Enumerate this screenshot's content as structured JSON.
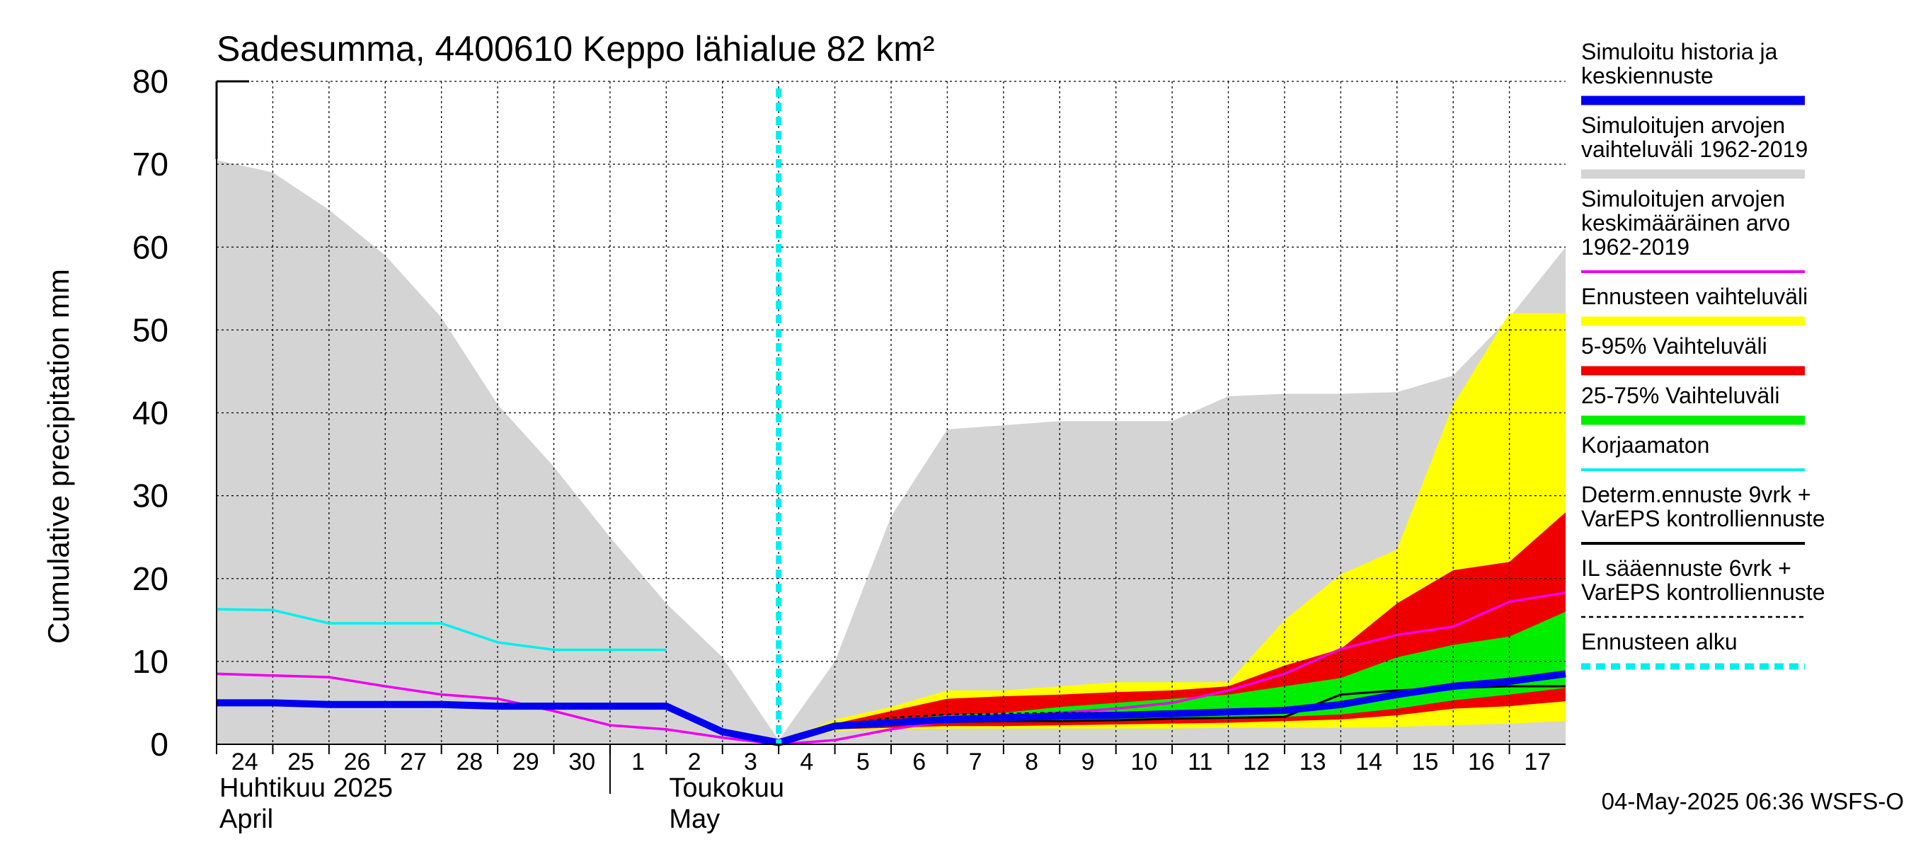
{
  "chart_data": {
    "type": "area",
    "title": "Sadesumma, 4400610 Keppo lähialue 82 km²",
    "ylabel": "Cumulative precipitation   mm",
    "ylim": [
      0,
      80
    ],
    "yticks": [
      "0",
      "10",
      "20",
      "30",
      "40",
      "50",
      "60",
      "70",
      "80"
    ],
    "xlim": [
      "2025-04-24",
      "2025-05-18"
    ],
    "x_tick_labels": [
      "24",
      "25",
      "26",
      "27",
      "28",
      "29",
      "30",
      "1",
      "2",
      "3",
      "4",
      "5",
      "6",
      "7",
      "8",
      "9",
      "10",
      "11",
      "12",
      "13",
      "14",
      "15",
      "16",
      "17"
    ],
    "month_labels": [
      {
        "line1": "Huhtikuu  2025",
        "line2": "April"
      },
      {
        "line1": "Toukokuu",
        "line2": "May"
      }
    ],
    "forecast_start": "2025-05-04",
    "grid": true,
    "legend_position": "right",
    "footer": "04-May-2025 06:36 WSFS-O",
    "legend": [
      {
        "label": "Simuloitu historia ja\nkeskiennuste",
        "color": "#0000ee",
        "style": "thick"
      },
      {
        "label": "Simuloitujen arvojen\nvaihteluväli 1962-2019",
        "color": "#d4d4d4",
        "style": "thick"
      },
      {
        "label": "Simuloitujen arvojen\nkeskimääräinen arvo\n   1962-2019",
        "color": "#ee00ee",
        "style": "line"
      },
      {
        "label": "Ennusteen vaihteluväli",
        "color": "#ffff00",
        "style": "thick"
      },
      {
        "label": "5-95% Vaihteluväli",
        "color": "#ee0000",
        "style": "thick"
      },
      {
        "label": "25-75% Vaihteluväli",
        "color": "#00ee00",
        "style": "thick"
      },
      {
        "label": "Korjaamaton",
        "color": "#00eeee",
        "style": "line"
      },
      {
        "label": "Determ.ennuste 9vrk +\nVarEPS kontrolliennuste",
        "color": "#000000",
        "style": "line"
      },
      {
        "label": "IL sääennuste 6vrk  +\n  VarEPS kontrolliennuste",
        "color": "#000000",
        "style": "dashed"
      },
      {
        "label": "Ennusteen alku",
        "color": "#00eeee",
        "style": "thickdashed"
      }
    ],
    "series": [
      {
        "name": "Simuloitujen arvojen vaihteluväli 1962-2019",
        "type": "band",
        "x": [
          "2025-04-24",
          "2025-04-25",
          "2025-04-26",
          "2025-04-27",
          "2025-04-28",
          "2025-04-29",
          "2025-04-30",
          "2025-05-01",
          "2025-05-02",
          "2025-05-03",
          "2025-05-04",
          "2025-05-05",
          "2025-05-06",
          "2025-05-07",
          "2025-05-08",
          "2025-05-09",
          "2025-05-10",
          "2025-05-11",
          "2025-05-12",
          "2025-05-13",
          "2025-05-14",
          "2025-05-15",
          "2025-05-16",
          "2025-05-17",
          "2025-05-18"
        ],
        "upper": [
          70.5,
          69,
          64.5,
          59,
          51.5,
          41,
          33.5,
          25,
          17,
          10.5,
          0.5,
          10,
          27.5,
          38,
          38.5,
          39,
          39,
          39,
          42,
          42.3,
          42.3,
          42.5,
          44.5,
          51.5,
          60
        ],
        "lower": [
          0,
          0,
          0,
          0,
          0,
          0,
          0,
          0,
          0,
          0,
          0,
          0,
          0,
          0,
          0,
          0,
          0,
          0,
          0,
          0,
          0,
          0,
          0,
          0,
          0
        ]
      },
      {
        "name": "Ennusteen vaihteluväli",
        "type": "band",
        "x": [
          "2025-05-04",
          "2025-05-05",
          "2025-05-06",
          "2025-05-07",
          "2025-05-08",
          "2025-05-09",
          "2025-05-10",
          "2025-05-11",
          "2025-05-12",
          "2025-05-13",
          "2025-05-14",
          "2025-05-15",
          "2025-05-16",
          "2025-05-17",
          "2025-05-18"
        ],
        "upper": [
          0.3,
          3,
          4.5,
          6.5,
          6.5,
          7,
          7.5,
          7.5,
          7.5,
          15,
          20.5,
          23.5,
          41,
          52,
          52
        ],
        "lower": [
          0.2,
          1.6,
          1.8,
          1.9,
          1.9,
          1.9,
          1.9,
          1.9,
          2,
          2,
          2,
          2.1,
          2.3,
          2.5,
          2.8
        ]
      },
      {
        "name": "5-95% Vaihteluväli",
        "type": "band",
        "x": [
          "2025-05-04",
          "2025-05-05",
          "2025-05-06",
          "2025-05-07",
          "2025-05-08",
          "2025-05-09",
          "2025-05-10",
          "2025-05-11",
          "2025-05-12",
          "2025-05-13",
          "2025-05-14",
          "2025-05-15",
          "2025-05-16",
          "2025-05-17",
          "2025-05-18"
        ],
        "upper": [
          0.3,
          2.5,
          4,
          5.5,
          5.8,
          6,
          6.3,
          6.5,
          7,
          9.5,
          11.5,
          17,
          21,
          22,
          28
        ],
        "lower": [
          0.2,
          1.8,
          2,
          2.2,
          2.2,
          2.3,
          2.4,
          2.5,
          2.6,
          2.8,
          3,
          3.5,
          4.3,
          4.6,
          5.2
        ]
      },
      {
        "name": "25-75% Vaihteluväli",
        "type": "band",
        "x": [
          "2025-05-04",
          "2025-05-05",
          "2025-05-06",
          "2025-05-07",
          "2025-05-08",
          "2025-05-09",
          "2025-05-10",
          "2025-05-11",
          "2025-05-12",
          "2025-05-13",
          "2025-05-14",
          "2025-05-15",
          "2025-05-16",
          "2025-05-17",
          "2025-05-18"
        ],
        "upper": [
          0.3,
          2.2,
          3,
          3.5,
          3.8,
          4.5,
          5,
          5.5,
          6,
          7,
          8,
          10.5,
          12,
          13,
          16
        ],
        "lower": [
          0.2,
          2,
          2.4,
          2.6,
          2.7,
          2.8,
          2.9,
          3,
          3.1,
          3.3,
          3.6,
          4.3,
          5.3,
          6,
          6.8
        ]
      },
      {
        "name": "Simuloitujen arvojen keskimääräinen arvo 1962-2019",
        "type": "line",
        "x": [
          "2025-04-24",
          "2025-04-25",
          "2025-04-26",
          "2025-04-27",
          "2025-04-28",
          "2025-04-29",
          "2025-04-30",
          "2025-05-01",
          "2025-05-02",
          "2025-05-03",
          "2025-05-04",
          "2025-05-05",
          "2025-05-06",
          "2025-05-07",
          "2025-05-08",
          "2025-05-09",
          "2025-05-10",
          "2025-05-11",
          "2025-05-12",
          "2025-05-13",
          "2025-05-14",
          "2025-05-15",
          "2025-05-16",
          "2025-05-17",
          "2025-05-18"
        ],
        "y": [
          8.5,
          8.3,
          8.1,
          7,
          6,
          5.5,
          4,
          2.3,
          1.8,
          0.8,
          0,
          0.5,
          1.8,
          2.8,
          3.3,
          3.8,
          4.3,
          5,
          6.5,
          8.5,
          11.5,
          13.2,
          14.2,
          17.2,
          18.3
        ]
      },
      {
        "name": "Korjaamaton",
        "type": "line",
        "x": [
          "2025-04-24",
          "2025-04-25",
          "2025-04-26",
          "2025-04-27",
          "2025-04-28",
          "2025-04-29",
          "2025-04-30",
          "2025-05-01",
          "2025-05-02"
        ],
        "y": [
          16.3,
          16.2,
          14.6,
          14.6,
          14.6,
          12.3,
          11.4,
          11.4,
          11.4
        ]
      },
      {
        "name": "Determ.ennuste 9vrk + VarEPS kontrolliennuste",
        "type": "line",
        "x": [
          "2025-05-04",
          "2025-05-05",
          "2025-05-06",
          "2025-05-07",
          "2025-05-08",
          "2025-05-09",
          "2025-05-10",
          "2025-05-11",
          "2025-05-12",
          "2025-05-13",
          "2025-05-14",
          "2025-05-15",
          "2025-05-16",
          "2025-05-17",
          "2025-05-18"
        ],
        "y": [
          0.2,
          2,
          2.5,
          2.7,
          2.8,
          2.8,
          2.9,
          3.1,
          3.2,
          3.3,
          6,
          6.5,
          6.8,
          7,
          7
        ]
      },
      {
        "name": "IL sääennuste 6vrk + VarEPS kontrolliennuste",
        "type": "dashed",
        "x": [
          "2025-05-04",
          "2025-05-05",
          "2025-05-06",
          "2025-05-07",
          "2025-05-08",
          "2025-05-09",
          "2025-05-10"
        ],
        "y": [
          0.2,
          2.3,
          3.2,
          3.6,
          3.7,
          3.8,
          3.8
        ]
      },
      {
        "name": "Simuloitu historia ja keskiennuste",
        "type": "thickline",
        "x": [
          "2025-04-24",
          "2025-04-25",
          "2025-04-26",
          "2025-04-27",
          "2025-04-28",
          "2025-04-29",
          "2025-04-30",
          "2025-05-01",
          "2025-05-02",
          "2025-05-03",
          "2025-05-04",
          "2025-05-05",
          "2025-05-06",
          "2025-05-07",
          "2025-05-08",
          "2025-05-09",
          "2025-05-10",
          "2025-05-11",
          "2025-05-12",
          "2025-05-13",
          "2025-05-14",
          "2025-05-15",
          "2025-05-16",
          "2025-05-17",
          "2025-05-18"
        ],
        "y": [
          5,
          5,
          4.8,
          4.8,
          4.8,
          4.6,
          4.6,
          4.6,
          4.6,
          1.5,
          0.2,
          2.2,
          2.6,
          3,
          3.2,
          3.4,
          3.5,
          3.7,
          3.9,
          4.1,
          4.8,
          6,
          7,
          7.6,
          8.5
        ]
      }
    ]
  }
}
